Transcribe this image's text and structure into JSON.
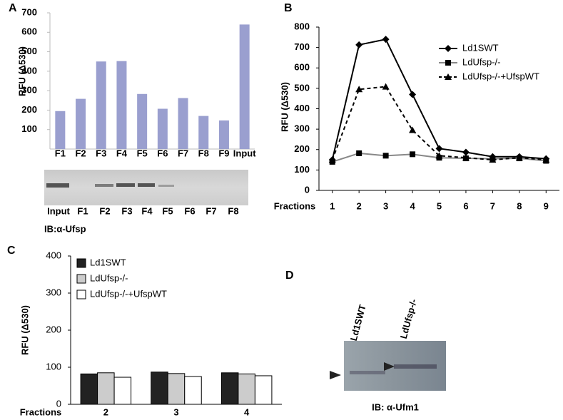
{
  "chart_data": [
    {
      "type": "bar",
      "panel": "A",
      "ylabel": "RFU (Δ530)",
      "categories": [
        "F1",
        "F2",
        "F3",
        "F4",
        "F5",
        "F6",
        "F7",
        "F8",
        "F9",
        "Input"
      ],
      "values": [
        195,
        258,
        450,
        452,
        283,
        207,
        262,
        170,
        147,
        640
      ],
      "color": "#9a9fcf",
      "ylim": [
        0,
        700
      ],
      "yticks": [
        100,
        200,
        300,
        400,
        500,
        600,
        700
      ]
    },
    {
      "type": "line",
      "panel": "B",
      "ylabel": "RFU (Δ530)",
      "xlabel": "Fractions",
      "x": [
        1,
        2,
        3,
        4,
        5,
        6,
        7,
        8,
        9
      ],
      "xlim": [
        0.5,
        9.5
      ],
      "xticks": [
        1,
        2,
        3,
        4,
        5,
        6,
        7,
        8,
        9
      ],
      "ylim": [
        0,
        800
      ],
      "yticks": [
        0,
        100,
        200,
        300,
        400,
        500,
        600,
        700,
        800
      ],
      "series": [
        {
          "name": "Ld1SWT",
          "color": "#000000",
          "line_color": "#000000",
          "marker": "diamond",
          "linestyle": "solid",
          "values": [
            150,
            713,
            740,
            470,
            205,
            187,
            165,
            165,
            155
          ]
        },
        {
          "name": "LdUfsp-/-",
          "color": "#000000",
          "line_color": "#888888",
          "marker": "square",
          "linestyle": "solid",
          "values": [
            140,
            182,
            170,
            177,
            160,
            157,
            155,
            157,
            145
          ]
        },
        {
          "name": "LdUfsp-/-+UfspWT",
          "color": "#000000",
          "line_color": "#000000",
          "marker": "triangle",
          "linestyle": "dashed",
          "values": [
            150,
            495,
            508,
            295,
            170,
            160,
            150,
            160,
            150
          ]
        }
      ]
    },
    {
      "type": "bar",
      "panel": "C",
      "ylabel": "RFU (Δ530)",
      "xlabel": "Fractions",
      "categories": [
        "2",
        "3",
        "4"
      ],
      "ylim": [
        0,
        400
      ],
      "yticks": [
        0,
        100,
        200,
        300,
        400
      ],
      "series": [
        {
          "name": "Ld1SWT",
          "color": "#222222",
          "values": [
            82,
            87,
            85
          ]
        },
        {
          "name": "LdUfsp-/-",
          "color": "#cccccc",
          "values": [
            85,
            83,
            82
          ]
        },
        {
          "name": "LdUfsp-/-+UfspWT",
          "color": "#ffffff",
          "values": [
            73,
            75,
            77
          ]
        }
      ]
    }
  ],
  "blots": [
    {
      "lanes": [
        "Input",
        "F1",
        "F2",
        "F3",
        "F4",
        "F5",
        "F6",
        "F7",
        "F8"
      ],
      "antibody": "IB:α-Ufsp"
    },
    {
      "panel": "D",
      "lanes": [
        "Ld1SWT",
        "LdUfsp-/-"
      ],
      "antibody": "IB: α-Ufm1"
    }
  ]
}
